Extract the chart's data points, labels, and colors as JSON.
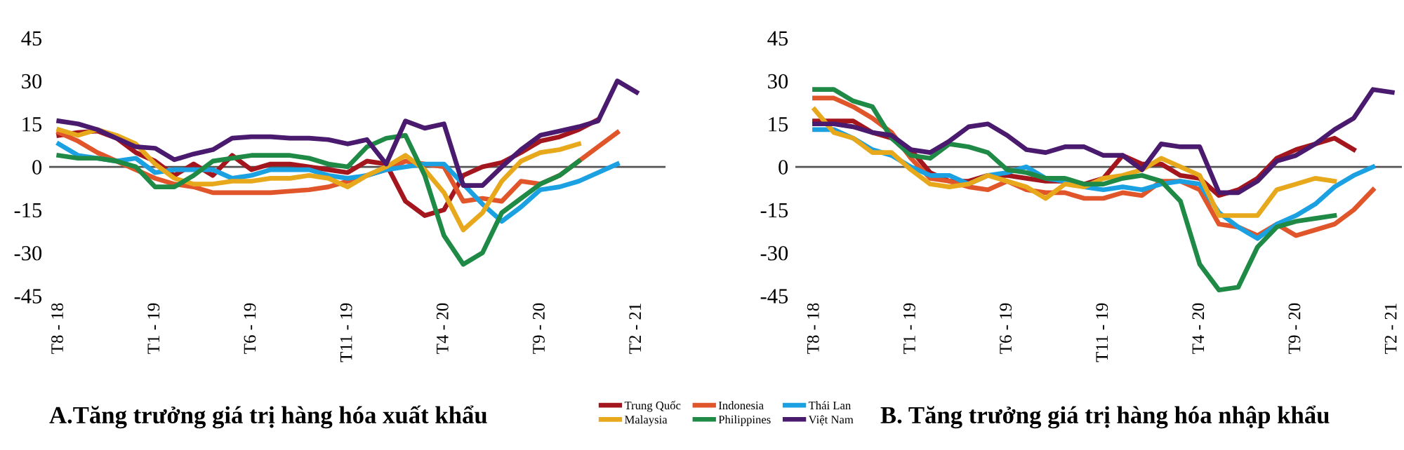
{
  "chart_data": [
    {
      "type": "line",
      "title": "A.Tăng trưởng giá trị hàng hóa xuất khẩu",
      "legend": "bottom",
      "grid": false,
      "categories": [
        "T8 - 18",
        null,
        null,
        null,
        null,
        "T1 - 19",
        null,
        null,
        null,
        null,
        "T6 - 19",
        null,
        null,
        null,
        null,
        "T11 - 19",
        null,
        null,
        null,
        null,
        "T4 - 20",
        null,
        null,
        null,
        null,
        "T9 - 20",
        null,
        null,
        null,
        null,
        "T2 - 21"
      ],
      "ylim": [
        -45,
        45
      ],
      "yticks": [
        -45,
        -30,
        -15,
        0,
        15,
        30,
        45
      ],
      "ref_lines": [
        {
          "axis": "y",
          "value": 0,
          "color": "#555555"
        }
      ],
      "series": [
        {
          "name": "Trung Quốc",
          "color": "#a4161e",
          "values": [
            11,
            12,
            12.5,
            10,
            5,
            2,
            -3,
            1,
            -3,
            4,
            -1,
            1,
            1,
            0,
            -1,
            -2,
            2,
            1,
            -12,
            -17,
            -15,
            -3,
            0,
            1.5,
            5,
            9,
            10.5,
            13,
            16.5,
            null,
            null
          ]
        },
        {
          "name": "Indonesia",
          "color": "#e0552a",
          "values": [
            12,
            9,
            5,
            2,
            -1,
            -4,
            -6,
            -7,
            -9,
            -9,
            -9,
            -9,
            -8.5,
            -8,
            -7,
            -5,
            -3,
            -1,
            2,
            1,
            0,
            -12,
            -11,
            -12,
            -5,
            -6,
            -3,
            2,
            7,
            12,
            null
          ]
        },
        {
          "name": "Thái Lan",
          "color": "#1ba1e2",
          "values": [
            8,
            4,
            3,
            2,
            3,
            -2,
            -1,
            -1,
            -1,
            -4,
            -3,
            -1,
            -1,
            -1,
            -3,
            -4,
            -3,
            -1,
            0,
            1,
            1,
            -6,
            -13,
            -19,
            -14,
            -8,
            -7,
            -5,
            -2,
            1,
            null
          ]
        },
        {
          "name": "Malaysia",
          "color": "#e8a81c",
          "values": [
            13,
            11,
            13,
            11,
            8,
            1,
            -4,
            -6,
            -6,
            -5,
            -5,
            -4,
            -4,
            -3,
            -4,
            -7,
            -3,
            0,
            4,
            -1,
            -9,
            -22,
            -16,
            -5,
            2,
            5,
            6,
            8,
            null,
            null,
            null
          ]
        },
        {
          "name": "Philippines",
          "color": "#1e8a45",
          "values": [
            4,
            3,
            3,
            2,
            0,
            -7,
            -7,
            -3,
            2,
            3,
            4,
            4,
            4,
            3,
            1,
            0,
            7,
            10,
            11,
            -3,
            -24,
            -34,
            -30,
            -16,
            -11,
            -6,
            -3,
            2,
            null,
            null,
            null
          ]
        },
        {
          "name": "Việt Nam",
          "color": "#4a1a6e",
          "values": [
            16,
            15,
            13,
            10,
            7,
            6.5,
            2.5,
            4.5,
            6,
            10,
            10.5,
            10.5,
            10,
            10,
            9.5,
            8,
            9.5,
            1,
            16,
            13.5,
            15,
            -6.5,
            -6.5,
            0,
            6,
            11,
            12.5,
            14,
            16,
            30,
            26
          ]
        }
      ]
    },
    {
      "type": "line",
      "title": "B. Tăng trưởng giá trị hàng hóa nhập khẩu",
      "grid": false,
      "categories": [
        "T8 - 18",
        null,
        null,
        null,
        null,
        "T1 - 19",
        null,
        null,
        null,
        null,
        "T6 - 19",
        null,
        null,
        null,
        null,
        "T11 - 19",
        null,
        null,
        null,
        null,
        "T4 - 20",
        null,
        null,
        null,
        null,
        "T9 - 20",
        null,
        null,
        null,
        null,
        "T2 - 21"
      ],
      "ylim": [
        -45,
        45
      ],
      "yticks": [
        -45,
        -30,
        -15,
        0,
        15,
        30,
        45
      ],
      "ref_lines": [
        {
          "axis": "y",
          "value": 0,
          "color": "#555555"
        }
      ],
      "series": [
        {
          "color": "#a4161e",
          "values": [
            16,
            16,
            16,
            12,
            10,
            6,
            -2,
            -5,
            -5,
            -3,
            -3,
            -4,
            -5,
            -5,
            -6,
            -4,
            4,
            1,
            1,
            -3,
            -4,
            -10,
            -8,
            -4,
            3,
            6,
            8,
            10,
            6,
            null,
            null
          ]
        },
        {
          "color": "#e0552a",
          "values": [
            24,
            24,
            21,
            17,
            12,
            3,
            -4,
            -5,
            -7,
            -8,
            -5,
            -8,
            -9,
            -9,
            -11,
            -11,
            -9,
            -10,
            -5,
            -5,
            -8,
            -20,
            -21,
            -24,
            -20,
            -24,
            -22,
            -20,
            -15,
            -8,
            null
          ]
        },
        {
          "color": "#1ba1e2",
          "values": [
            13,
            13,
            10,
            6,
            4,
            0,
            -3,
            -3,
            -6,
            -3,
            -2,
            0,
            -4,
            -5,
            -7,
            -8,
            -7,
            -8,
            -6,
            -5,
            -6,
            -16,
            -21,
            -25,
            -20,
            -17,
            -13,
            -7,
            -3,
            0,
            null
          ]
        },
        {
          "color": "#e8a81c",
          "values": [
            20,
            12,
            10,
            5,
            5,
            -1,
            -6,
            -7,
            -6,
            -3,
            -5,
            -7,
            -11,
            -6,
            -7,
            -4,
            -3,
            -1,
            3,
            0,
            -3,
            -17,
            -17,
            -17,
            -8,
            -6,
            -4,
            -5,
            null,
            null,
            null
          ]
        },
        {
          "color": "#1e8a45",
          "values": [
            27,
            27,
            23,
            21,
            10,
            4,
            3,
            8,
            7,
            5,
            -1,
            -2,
            -4,
            -4,
            -6,
            -6,
            -4,
            -3,
            -5,
            -12,
            -34,
            -43,
            -42,
            -28,
            -21,
            -19,
            -18,
            -17,
            null,
            null,
            null
          ]
        },
        {
          "color": "#4a1a6e",
          "values": [
            15,
            15,
            14,
            12,
            11,
            6,
            5,
            9,
            14,
            15,
            11,
            6,
            5,
            7,
            7,
            4,
            4,
            -1,
            8,
            7,
            7,
            -9,
            -9,
            -5,
            2,
            4,
            8,
            13,
            17,
            27,
            26
          ]
        }
      ]
    }
  ]
}
